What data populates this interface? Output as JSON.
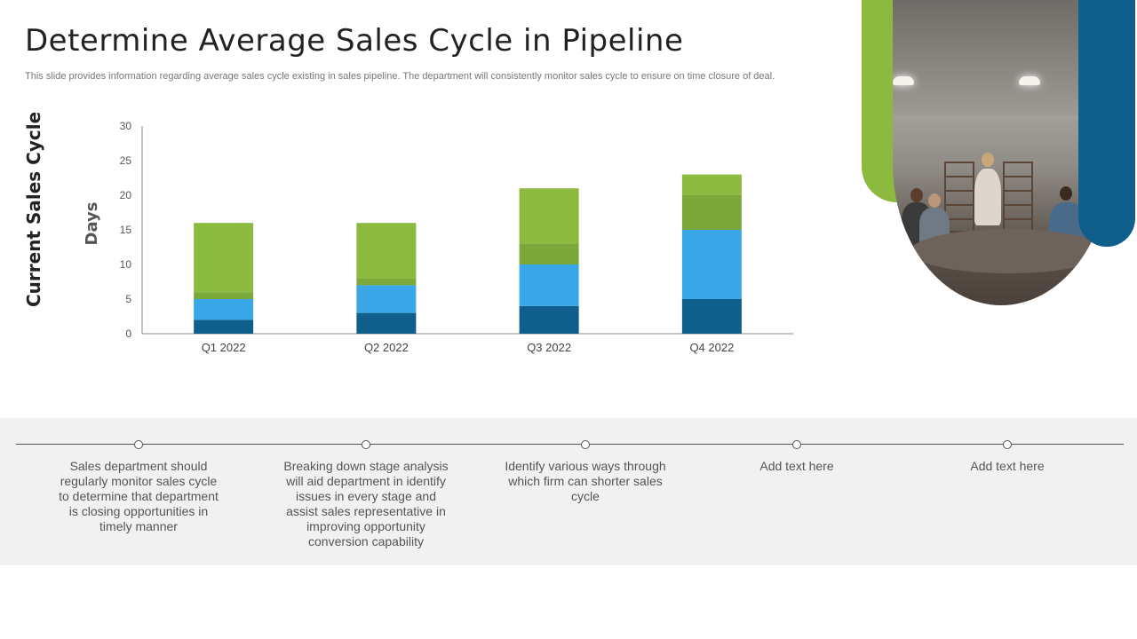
{
  "header": {
    "title": "Determine Average Sales Cycle in Pipeline",
    "subtitle": "This slide provides information regarding average sales cycle existing in sales pipeline. The department will consistently monitor sales cycle to ensure on time closure of deal."
  },
  "chart_labels": {
    "main": "Current Sales Cycle",
    "y_axis": "Days"
  },
  "chart_data": {
    "type": "bar",
    "stacked": true,
    "categories": [
      "Q1 2022",
      "Q2 2022",
      "Q3 2022",
      "Q4 2022"
    ],
    "series": [
      {
        "values": [
          2,
          3,
          4,
          5
        ],
        "color": "#0f5e8c"
      },
      {
        "values": [
          3,
          4,
          6,
          10
        ],
        "color": "#3aa8e8"
      },
      {
        "values": [
          1,
          1,
          3,
          5
        ],
        "color": "#7ba83a"
      },
      {
        "values": [
          10,
          8,
          8,
          3
        ],
        "color": "#8cba3e"
      }
    ],
    "ylabel": "Days",
    "ylim": [
      0,
      30
    ],
    "yticks": [
      0,
      5,
      10,
      15,
      20,
      25,
      30
    ],
    "grid": false,
    "legend": "none"
  },
  "timeline": {
    "notes": [
      "Sales department should regularly monitor sales cycle to determine that department is closing opportunities in timely manner",
      "Breaking down stage analysis will aid department in identify issues in every stage and assist sales representative in improving opportunity conversion capability",
      "Identify various ways through which firm can shorter sales cycle",
      "Add text here",
      "Add text here"
    ]
  },
  "colors": {
    "accent_green": "#8cba3e",
    "accent_blue": "#0f5e8c",
    "band": "#f1f1f1"
  },
  "image": {
    "description_icon": "meeting-photo"
  }
}
